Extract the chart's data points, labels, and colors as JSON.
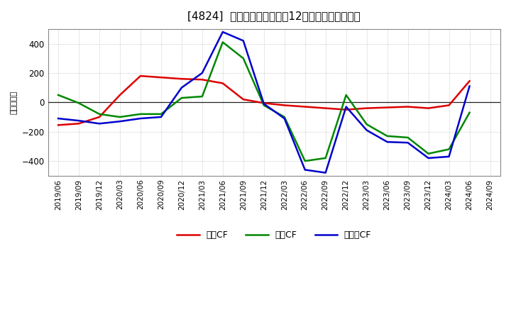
{
  "title": "[4824]  キャッシュフローの12か月移動合計の推移",
  "ylabel": "（百万円）",
  "background_color": "#ffffff",
  "grid_color": "#aaaaaa",
  "x_labels": [
    "2019/06",
    "2019/09",
    "2019/12",
    "2020/03",
    "2020/06",
    "2020/09",
    "2020/12",
    "2021/03",
    "2021/06",
    "2021/09",
    "2021/12",
    "2022/03",
    "2022/06",
    "2022/09",
    "2022/12",
    "2023/03",
    "2023/06",
    "2023/09",
    "2023/12",
    "2024/03",
    "2024/06",
    "2024/09"
  ],
  "operating_cf": [
    -155,
    -145,
    -100,
    50,
    180,
    170,
    160,
    155,
    130,
    20,
    -5,
    -20,
    -30,
    -40,
    -50,
    -40,
    -35,
    -30,
    -40,
    -20,
    145,
    null
  ],
  "investing_cf": [
    50,
    -5,
    -80,
    -100,
    -80,
    -80,
    30,
    40,
    410,
    300,
    -20,
    -100,
    -400,
    -380,
    50,
    -150,
    -230,
    -240,
    -350,
    -320,
    -70,
    null
  ],
  "free_cf": [
    -110,
    -125,
    -145,
    -130,
    -110,
    -100,
    100,
    200,
    480,
    420,
    -10,
    -110,
    -460,
    -480,
    -30,
    -190,
    -270,
    -275,
    -380,
    -370,
    110,
    null
  ],
  "operating_color": "#dd0000",
  "investing_color": "#008800",
  "free_color": "#0000cc",
  "ylim": [
    -500,
    500
  ],
  "yticks": [
    -400,
    -200,
    0,
    200,
    400
  ],
  "legend_labels": [
    "営業CF",
    "投資CF",
    "フリーCF"
  ]
}
